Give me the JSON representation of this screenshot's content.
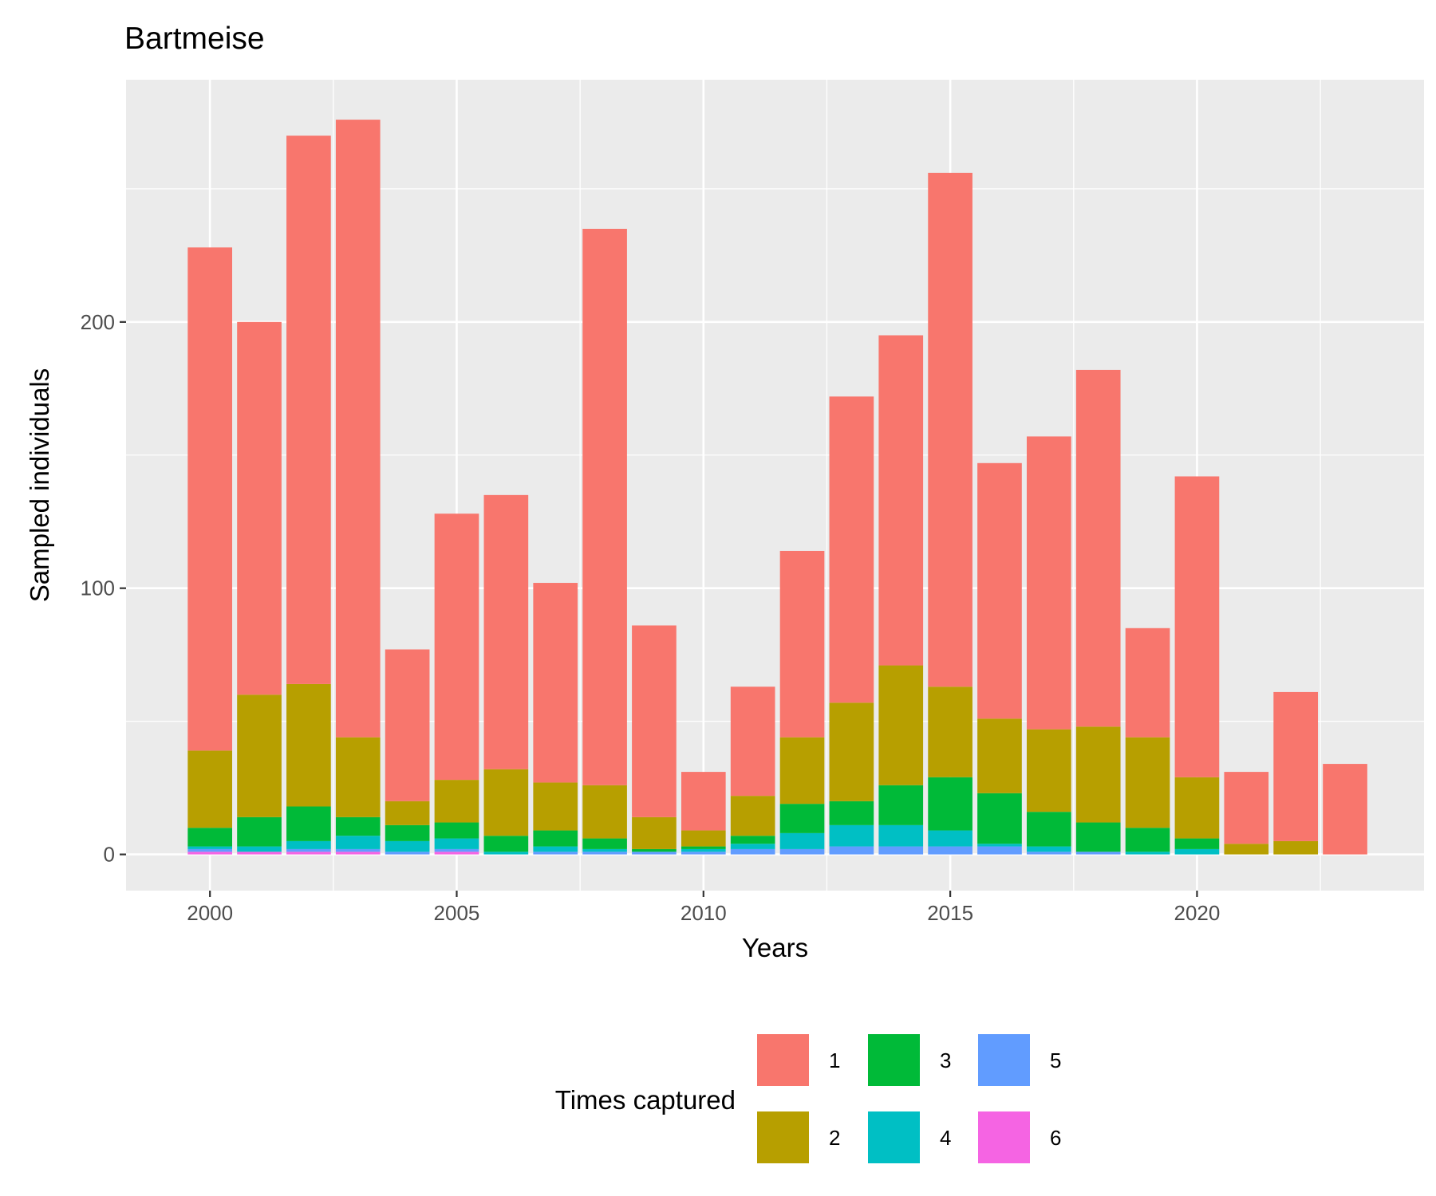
{
  "chart_data": {
    "type": "bar",
    "stacked": true,
    "title": "Bartmeise",
    "xlabel": "Years",
    "ylabel": "Sampled individuals",
    "x": [
      2000,
      2001,
      2002,
      2003,
      2004,
      2005,
      2006,
      2007,
      2008,
      2009,
      2010,
      2011,
      2012,
      2013,
      2014,
      2015,
      2016,
      2017,
      2018,
      2019,
      2020,
      2021,
      2022,
      2023
    ],
    "xlim": [
      1998.3,
      2024.6
    ],
    "ylim": [
      -13.6,
      291
    ],
    "x_ticks": [
      2000,
      2005,
      2010,
      2015,
      2020
    ],
    "x_tick_labels": [
      "2000",
      "2005",
      "2010",
      "2015",
      "2020"
    ],
    "y_ticks": [
      0,
      100,
      200
    ],
    "y_tick_labels": [
      "0",
      "100",
      "200"
    ],
    "y_minor_ticks": [
      50,
      150,
      250
    ],
    "x_minor_ticks": [
      2002.5,
      2007.5,
      2012.5,
      2017.5,
      2022.5
    ],
    "legend": {
      "title": "Times captured",
      "position": "bottom",
      "columns": 3
    },
    "series": [
      {
        "name": "6",
        "color": "#F564E3",
        "values": [
          1,
          1,
          1,
          1,
          0,
          1,
          0,
          0,
          0,
          0,
          0,
          0,
          0,
          0,
          0,
          0,
          0,
          0,
          0,
          0,
          0,
          0,
          0,
          0
        ]
      },
      {
        "name": "5",
        "color": "#619CFF",
        "values": [
          1,
          0,
          1,
          1,
          1,
          1,
          0,
          1,
          1,
          1,
          1,
          2,
          2,
          3,
          3,
          3,
          3,
          1,
          1,
          0,
          0,
          0,
          0,
          0
        ]
      },
      {
        "name": "4",
        "color": "#00BFC4",
        "values": [
          1,
          2,
          3,
          5,
          4,
          4,
          1,
          2,
          1,
          0,
          1,
          2,
          6,
          8,
          8,
          6,
          1,
          2,
          0,
          1,
          2,
          0,
          0,
          0
        ]
      },
      {
        "name": "3",
        "color": "#00BA38",
        "values": [
          7,
          11,
          13,
          7,
          6,
          6,
          6,
          6,
          4,
          1,
          1,
          3,
          11,
          9,
          15,
          20,
          19,
          13,
          11,
          9,
          4,
          0,
          0,
          0
        ]
      },
      {
        "name": "2",
        "color": "#B79F00",
        "values": [
          29,
          46,
          46,
          30,
          9,
          16,
          25,
          18,
          20,
          12,
          6,
          15,
          25,
          37,
          45,
          34,
          28,
          31,
          36,
          34,
          23,
          4,
          5,
          0
        ]
      },
      {
        "name": "1",
        "color": "#F8766D",
        "values": [
          189,
          140,
          206,
          232,
          57,
          100,
          103,
          75,
          209,
          72,
          22,
          41,
          70,
          115,
          124,
          193,
          96,
          110,
          134,
          41,
          113,
          27,
          56,
          34
        ]
      }
    ]
  }
}
